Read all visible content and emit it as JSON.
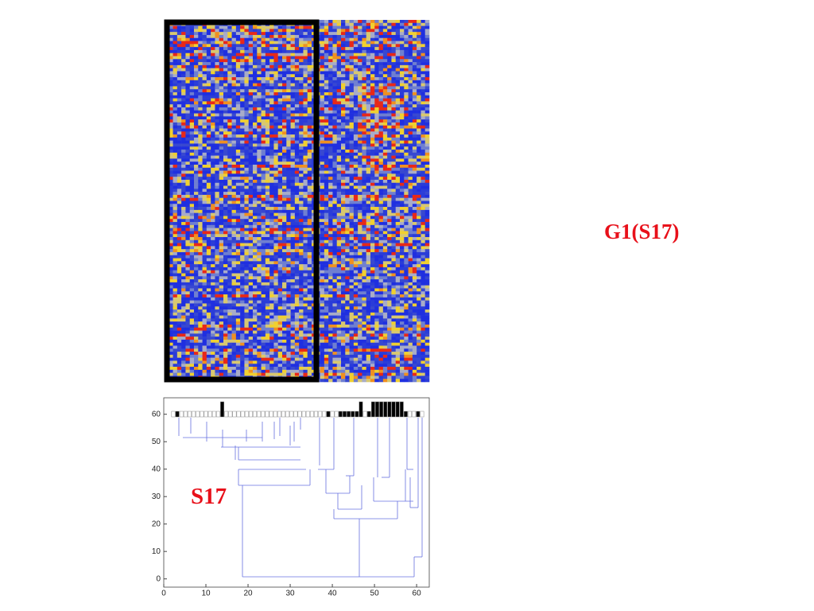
{
  "labels": {
    "cluster": "G1(S17)",
    "subgroup": "S17"
  },
  "dendrogram": {
    "xlim": [
      0,
      63
    ],
    "ylim": [
      -3,
      66
    ],
    "xticks": [
      0,
      10,
      20,
      30,
      40,
      50,
      60
    ],
    "yticks": [
      0,
      10,
      20,
      30,
      40,
      50,
      60
    ]
  }
}
